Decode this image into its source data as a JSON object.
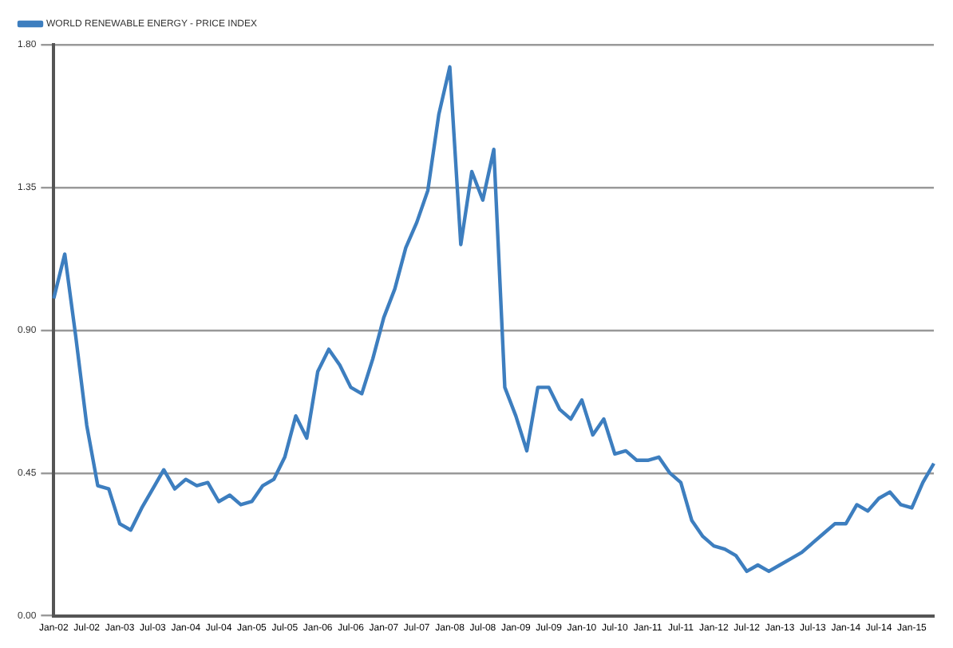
{
  "chart_data": {
    "type": "line",
    "categories": [
      "Jan-02",
      null,
      null,
      "Jul-02",
      null,
      null,
      "Jan-03",
      null,
      null,
      "Jul-03",
      null,
      null,
      "Jan-04",
      null,
      null,
      "Jul-04",
      null,
      null,
      "Jan-05",
      null,
      null,
      "Jul-05",
      null,
      null,
      "Jan-06",
      null,
      null,
      "Jul-06",
      null,
      null,
      "Jan-07",
      null,
      null,
      "Jul-07",
      null,
      null,
      "Jan-08",
      null,
      null,
      "Jul-08",
      null,
      null,
      "Jan-09",
      null,
      null,
      "Jul-09",
      null,
      null,
      "Jan-10",
      null,
      null,
      "Jul-10",
      null,
      null,
      "Jan-11",
      null,
      null,
      "Jul-11",
      null,
      null,
      "Jan-12",
      null,
      null,
      "Jul-12",
      null,
      null,
      "Jan-13",
      null,
      null,
      "Jul-13",
      null,
      null,
      "Jan-14",
      null,
      null,
      "Jul-14",
      null,
      null,
      "Jan-15",
      null,
      null
    ],
    "series": [
      {
        "name": "WORLD RENEWABLE ENERGY - PRICE INDEX",
        "color": "#3d7ebf",
        "values": [
          1.0,
          1.14,
          0.88,
          0.6,
          0.41,
          0.4,
          0.29,
          0.27,
          0.34,
          0.4,
          0.46,
          0.4,
          0.43,
          0.41,
          0.42,
          0.36,
          0.38,
          0.35,
          0.36,
          0.41,
          0.43,
          0.5,
          0.63,
          0.56,
          0.77,
          0.84,
          0.79,
          0.72,
          0.7,
          0.81,
          0.94,
          1.03,
          1.16,
          1.24,
          1.34,
          1.58,
          1.73,
          1.17,
          1.4,
          1.31,
          1.47,
          0.72,
          0.63,
          0.52,
          0.72,
          0.72,
          0.65,
          0.62,
          0.68,
          0.57,
          0.62,
          0.51,
          0.52,
          0.49,
          0.49,
          0.5,
          0.45,
          0.42,
          0.3,
          0.25,
          0.22,
          0.21,
          0.19,
          0.14,
          0.16,
          0.14,
          0.16,
          0.18,
          0.2,
          0.23,
          0.26,
          0.29,
          0.29,
          0.35,
          0.33,
          0.37,
          0.39,
          0.35,
          0.34,
          0.42,
          0.48
        ]
      }
    ],
    "ylim": [
      0,
      1.8
    ],
    "yticks": [
      {
        "value": 0,
        "label": "0.00"
      },
      0.45,
      {
        "value": 0.9,
        "label": "0.90"
      },
      1.35,
      {
        "value": 1.8,
        "label": "1.80"
      }
    ],
    "grid": "y",
    "legend": "top left",
    "marker": "none",
    "line_style": "solid"
  }
}
